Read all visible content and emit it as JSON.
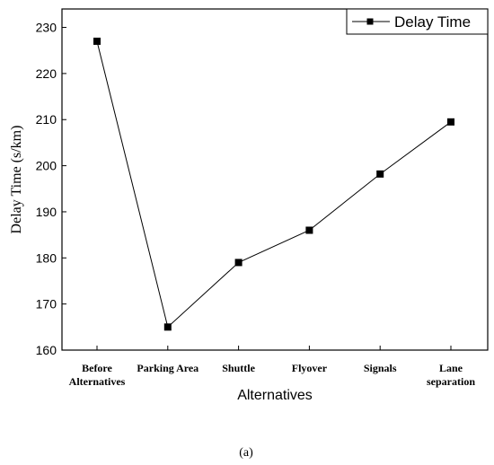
{
  "chart_data": {
    "type": "line",
    "categories": [
      [
        "Before",
        "Alternatives"
      ],
      [
        "Parking Area"
      ],
      [
        "Shuttle"
      ],
      [
        "Flyover"
      ],
      [
        "Signals"
      ],
      [
        "Lane",
        "separation"
      ]
    ],
    "series": [
      {
        "name": "Delay Time",
        "values": [
          227,
          165,
          179,
          186,
          198.2,
          209.5
        ],
        "marker": "square",
        "color": "#000000"
      }
    ],
    "xlabel": "Alternatives",
    "ylabel": "Delay Time (s/km)",
    "ylim": [
      160,
      234
    ],
    "yticks": [
      160,
      170,
      180,
      190,
      200,
      210,
      220,
      230
    ],
    "grid": false,
    "legend": "top-right"
  },
  "caption": "(a)"
}
